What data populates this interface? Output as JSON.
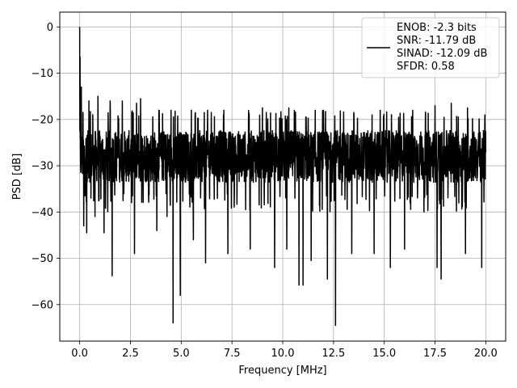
{
  "chart_data": {
    "type": "line",
    "title": "",
    "xlabel": "Frequency [MHz]",
    "ylabel": "PSD [dB]",
    "xlim": [
      -0.98,
      20.98
    ],
    "ylim": [
      -67.9,
      3.2
    ],
    "xticks": [
      0.0,
      2.5,
      5.0,
      7.5,
      10.0,
      12.5,
      15.0,
      17.5,
      20.0
    ],
    "xtick_labels": [
      "0.0",
      "2.5",
      "5.0",
      "7.5",
      "10.0",
      "12.5",
      "15.0",
      "17.5",
      "20.0"
    ],
    "yticks": [
      0,
      -10,
      -20,
      -30,
      -40,
      -50,
      -60
    ],
    "ytick_labels": [
      "0",
      "−10",
      "−20",
      "−30",
      "−40",
      "−50",
      "−60"
    ],
    "grid": true,
    "legend_position": "top-right",
    "legend_lines": [
      "ENOB: -2.3 bits",
      "SNR: -11.79 dB",
      "SINAD: -12.09 dB",
      "SFDR: 0.58"
    ],
    "series": [
      {
        "color": "#000000",
        "x_start": 0.0,
        "x_end": 20.0,
        "noise_floor_typical_range": [
          -36,
          -20
        ],
        "low_freq_peak": [
          0.0,
          0.0
        ],
        "dips": [
          [
            0.2,
            -43
          ],
          [
            0.35,
            -44.5
          ],
          [
            0.55,
            -37
          ],
          [
            0.75,
            -41
          ],
          [
            1.2,
            -44.5
          ],
          [
            1.6,
            -53.8
          ],
          [
            2.7,
            -49
          ],
          [
            3.8,
            -44
          ],
          [
            4.3,
            -41
          ],
          [
            4.6,
            -64
          ],
          [
            4.95,
            -58
          ],
          [
            5.6,
            -46
          ],
          [
            6.2,
            -51
          ],
          [
            7.3,
            -49
          ],
          [
            8.4,
            -48
          ],
          [
            9.6,
            -52
          ],
          [
            10.2,
            -48
          ],
          [
            10.8,
            -55.8
          ],
          [
            11.0,
            -55.8
          ],
          [
            11.4,
            -50.5
          ],
          [
            12.2,
            -54.5
          ],
          [
            12.6,
            -64.5
          ],
          [
            13.4,
            -49
          ],
          [
            14.5,
            -49
          ],
          [
            15.3,
            -52
          ],
          [
            16.0,
            -48
          ],
          [
            17.6,
            -52
          ],
          [
            17.8,
            -54.5
          ],
          [
            19.0,
            -49
          ],
          [
            19.8,
            -52
          ]
        ],
        "peaks": [
          [
            0.02,
            -6.5
          ],
          [
            0.08,
            -13
          ],
          [
            0.2,
            -11
          ],
          [
            0.45,
            -16
          ],
          [
            0.9,
            -15
          ],
          [
            1.5,
            -16
          ],
          [
            2.1,
            -16
          ],
          [
            2.8,
            -16.5
          ],
          [
            3.0,
            -15.5
          ],
          [
            3.9,
            -18
          ],
          [
            4.5,
            -18
          ],
          [
            5.5,
            -18
          ],
          [
            6.3,
            -18
          ],
          [
            7.1,
            -18
          ],
          [
            8.4,
            -17.5
          ],
          [
            9.0,
            -17.5
          ],
          [
            10.3,
            -17.5
          ],
          [
            11.6,
            -18
          ],
          [
            12.0,
            -18
          ],
          [
            13.5,
            -18.5
          ],
          [
            14.8,
            -18
          ],
          [
            16.4,
            -18
          ],
          [
            17.5,
            -17
          ],
          [
            18.3,
            -16.5
          ],
          [
            19.1,
            -17.5
          ],
          [
            19.95,
            -19
          ]
        ]
      }
    ]
  }
}
